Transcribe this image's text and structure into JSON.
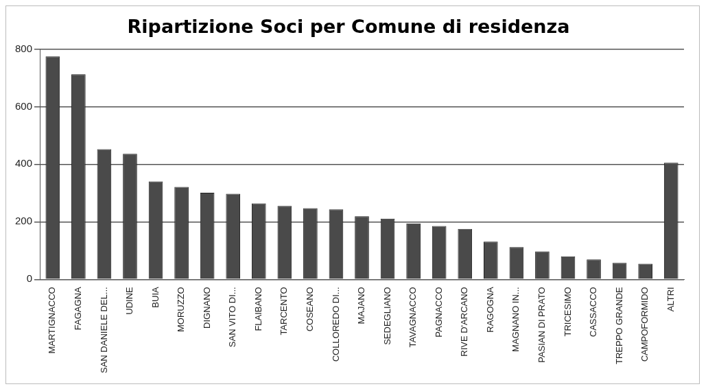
{
  "chart_data": {
    "type": "bar",
    "title": "Ripartizione Soci per Comune di residenza",
    "categories": [
      "MARTIGNACCO",
      "FAGAGNA",
      "SAN DANIELE DEL...",
      "UDINE",
      "BUIA",
      "MORUZZO",
      "DIGNANO",
      "SAN VITO DI...",
      "FLAIBANO",
      "TARCENTO",
      "COSEANO",
      "COLLOREDO DI...",
      "MAJANO",
      "SEDEGLIANO",
      "TAVAGNACCO",
      "PAGNACCO",
      "RIVE D'ARCANO",
      "RAGOGNA",
      "MAGNANO IN...",
      "PASIAN DI PRATO",
      "TRICESIMO",
      "CASSACCO",
      "TREPPO GRANDE",
      "CAMPOFORMIDO",
      "ALTRI"
    ],
    "values": [
      774,
      712,
      452,
      436,
      340,
      321,
      301,
      297,
      264,
      255,
      247,
      243,
      219,
      211,
      194,
      185,
      175,
      131,
      112,
      97,
      80,
      69,
      57,
      54,
      405
    ],
    "color": "#4a4a4a",
    "ylim": [
      0,
      800
    ],
    "yticks": [
      0,
      200,
      400,
      600,
      800
    ],
    "grid": "y",
    "legend": false
  }
}
